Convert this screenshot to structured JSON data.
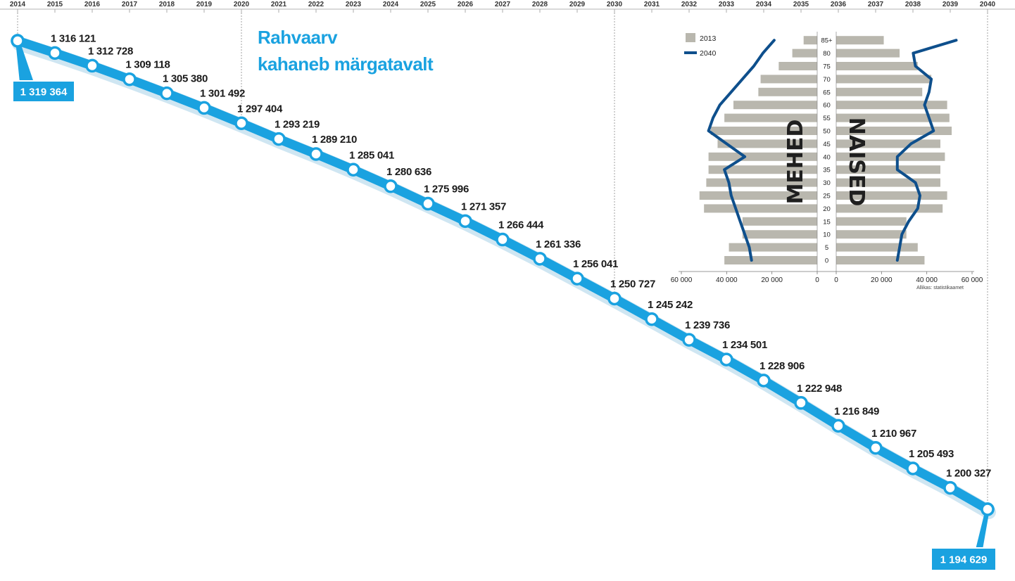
{
  "title": {
    "line1": "Rahvaarv",
    "line2": "kahaneb märgatavalt"
  },
  "colors": {
    "line": "#1aa2e0",
    "line_shadow": "#cfe6f2",
    "bar_2013": "#b9b7ae",
    "line_2040": "#0e4f8c",
    "axis": "#777777"
  },
  "chart_data": [
    {
      "type": "line",
      "x": [
        2014,
        2015,
        2016,
        2017,
        2018,
        2019,
        2020,
        2021,
        2022,
        2023,
        2024,
        2025,
        2026,
        2027,
        2028,
        2029,
        2030,
        2031,
        2032,
        2033,
        2034,
        2035,
        2036,
        2037,
        2038,
        2039,
        2040
      ],
      "tick_labels": [
        "2014",
        "2015",
        "2016",
        "2017",
        "2018",
        "2019",
        "2020",
        "2021",
        "2022",
        "2023",
        "2024",
        "2025",
        "2026",
        "2027",
        "2028",
        "2029",
        "2030",
        "2031",
        "2032",
        "2033",
        "2034",
        "2035",
        "2036",
        "2037",
        "2038",
        "2039",
        "2040"
      ],
      "values": [
        1319364,
        1316121,
        1312728,
        1309118,
        1305380,
        1301492,
        1297404,
        1293219,
        1289210,
        1285041,
        1280636,
        1275996,
        1271357,
        1266444,
        1261336,
        1256041,
        1250727,
        1245242,
        1239736,
        1234501,
        1228906,
        1222948,
        1216849,
        1210967,
        1205493,
        1200327,
        1194629
      ],
      "value_labels": [
        "1 319 364",
        "1 316 121",
        "1 312 728",
        "1 309 118",
        "1 305 380",
        "1 301 492",
        "1 297 404",
        "1 293 219",
        "1 289 210",
        "1 285 041",
        "1 280 636",
        "1 275 996",
        "1 271 357",
        "1 266 444",
        "1 261 336",
        "1 256 041",
        "1 250 727",
        "1 245 242",
        "1 239 736",
        "1 234 501",
        "1 228 906",
        "1 222 948",
        "1 216 849",
        "1 210 967",
        "1 205 493",
        "1 200 327",
        "1 194 629"
      ],
      "highlighted_labels": [
        "1 319 364",
        "1 194 629"
      ],
      "reference_lines_x": [
        2014,
        2020,
        2030,
        2040
      ],
      "xlabel": "",
      "ylabel": "",
      "grid": false
    },
    {
      "type": "bar",
      "orientation": "horizontal",
      "age_groups": [
        "0",
        "5",
        "10",
        "15",
        "20",
        "25",
        "30",
        "35",
        "40",
        "45",
        "50",
        "55",
        "60",
        "65",
        "70",
        "75",
        "80",
        "85+"
      ],
      "left_label": "MEHED",
      "right_label": "NAISED",
      "x_ticks_left": [
        "60 000",
        "40 000",
        "20 000",
        "0"
      ],
      "x_ticks_right": [
        "0",
        "20 000",
        "40 000",
        "60 000"
      ],
      "xlim": [
        0,
        60000
      ],
      "legend": [
        "2013",
        "2040"
      ],
      "legend_position": "top-left",
      "source": "Allikas: statistikaamet",
      "series": [
        {
          "name": "2013",
          "sex": "MEHED",
          "style": "bar",
          "values": [
            41000,
            39000,
            33000,
            33000,
            50000,
            52000,
            49000,
            48000,
            48000,
            44000,
            47000,
            41000,
            37000,
            26000,
            25000,
            17000,
            11000,
            6000
          ]
        },
        {
          "name": "2013",
          "sex": "NAISED",
          "style": "bar",
          "values": [
            39000,
            36000,
            31000,
            31000,
            47000,
            49000,
            46000,
            46000,
            48000,
            46000,
            51000,
            50000,
            49000,
            38000,
            42000,
            36000,
            28000,
            21000
          ]
        },
        {
          "name": "2040",
          "sex": "MEHED",
          "style": "line",
          "values": [
            29000,
            30000,
            32000,
            34000,
            36000,
            38000,
            39000,
            41000,
            32000,
            40000,
            48000,
            46000,
            43000,
            38000,
            33000,
            28000,
            24000,
            19000
          ]
        },
        {
          "name": "2040",
          "sex": "NAISED",
          "style": "line",
          "values": [
            27000,
            28000,
            29000,
            32000,
            36000,
            37000,
            35000,
            27000,
            27000,
            33000,
            43000,
            41000,
            39000,
            41000,
            42000,
            35000,
            34000,
            53000
          ]
        }
      ]
    }
  ]
}
